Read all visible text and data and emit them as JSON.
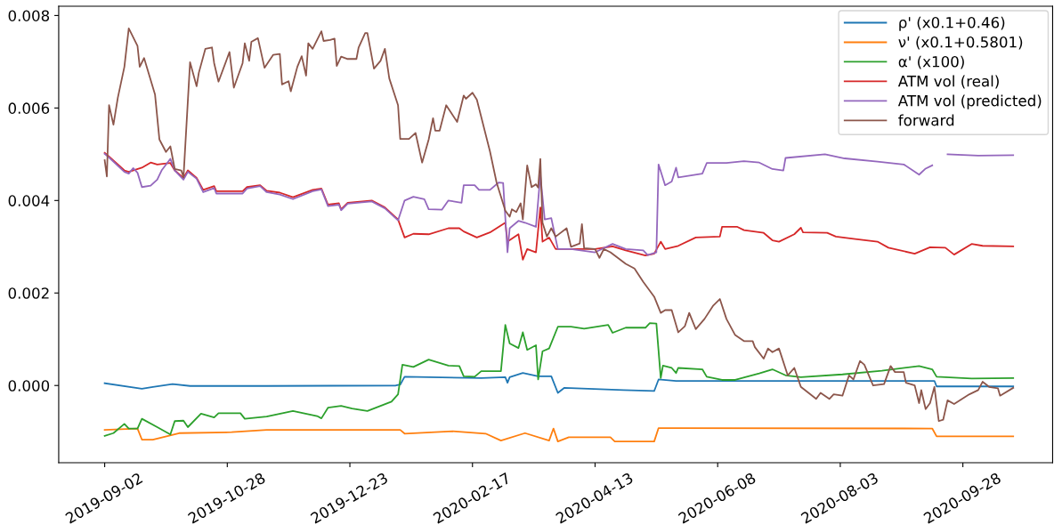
{
  "chart_data": {
    "type": "line",
    "xlim": [
      "2019-08-12",
      "2020-11-08"
    ],
    "ylim": [
      -0.00167,
      0.0082
    ],
    "xticks": [
      "2019-09-02",
      "2019-10-28",
      "2019-12-23",
      "2020-02-17",
      "2020-04-13",
      "2020-06-08",
      "2020-08-03",
      "2020-09-28"
    ],
    "yticks": [
      {
        "value": 0,
        "label": "0.000"
      },
      {
        "value": 0.002,
        "label": "0.002"
      },
      {
        "value": 0.004,
        "label": "0.004"
      },
      {
        "value": 0.006,
        "label": "0.006"
      },
      {
        "value": 0.008,
        "label": "0.008"
      }
    ],
    "grid": false,
    "legend": "top right",
    "series": [
      {
        "name": "ρ' (x0.1+0.46)",
        "color": "#1f77b4",
        "x": [
          "2019-09-02",
          "2019-09-19",
          "2019-09-24",
          "2019-10-03",
          "2019-10-11",
          "2019-11-15",
          "2020-01-13",
          "2020-01-15",
          "2020-01-17",
          "2020-02-21",
          "2020-03-03",
          "2020-03-04",
          "2020-03-05",
          "2020-03-11",
          "2020-03-18",
          "2020-03-24",
          "2020-03-27",
          "2020-03-30",
          "2020-04-26",
          "2020-05-10",
          "2020-05-12",
          "2020-05-20",
          "2020-07-16",
          "2020-09-15",
          "2020-09-16",
          "2020-10-21"
        ],
        "values": [
          5e-05,
          -7e-05,
          -3e-05,
          3e-05,
          -1e-05,
          -1e-05,
          0.0,
          2e-05,
          0.00019,
          0.00016,
          0.00018,
          6e-05,
          0.00018,
          0.00027,
          0.0002,
          0.0002,
          -0.00016,
          -5e-05,
          -0.0001,
          -0.00012,
          0.00013,
          0.0001,
          0.0001,
          0.0001,
          -2e-05,
          -2e-05
        ]
      },
      {
        "name": "ν' (x0.1+0.5801)",
        "color": "#ff7f0e",
        "x": [
          "2019-09-02",
          "2019-09-17",
          "2019-09-19",
          "2019-09-24",
          "2019-10-06",
          "2019-10-30",
          "2019-11-15",
          "2020-01-15",
          "2020-01-17",
          "2020-02-08",
          "2020-02-23",
          "2020-03-01",
          "2020-03-12",
          "2020-03-23",
          "2020-03-25",
          "2020-03-27",
          "2020-04-01",
          "2020-04-20",
          "2020-04-22",
          "2020-05-10",
          "2020-05-12",
          "2020-09-14",
          "2020-09-16",
          "2020-10-21"
        ],
        "values": [
          -0.00096,
          -0.00093,
          -0.00117,
          -0.00117,
          -0.00103,
          -0.00101,
          -0.00096,
          -0.00096,
          -0.00104,
          -0.00099,
          -0.00104,
          -0.00119,
          -0.00103,
          -0.00119,
          -0.00093,
          -0.00121,
          -0.00112,
          -0.00112,
          -0.00121,
          -0.00121,
          -0.00092,
          -0.00093,
          -0.0011,
          -0.0011
        ]
      },
      {
        "name": "α' (x100)",
        "color": "#2ca02c",
        "x": [
          "2019-09-02",
          "2019-09-06",
          "2019-09-11",
          "2019-09-13",
          "2019-09-17",
          "2019-09-19",
          "2019-09-26",
          "2019-10-02",
          "2019-10-04",
          "2019-10-08",
          "2019-10-10",
          "2019-10-16",
          "2019-10-22",
          "2019-10-24",
          "2019-11-03",
          "2019-11-05",
          "2019-11-15",
          "2019-11-27",
          "2019-12-08",
          "2019-12-10",
          "2019-12-13",
          "2019-12-19",
          "2019-12-24",
          "2019-12-31",
          "2020-01-11",
          "2020-01-14",
          "2020-01-16",
          "2020-01-21",
          "2020-01-28",
          "2020-02-06",
          "2020-02-11",
          "2020-02-13",
          "2020-02-18",
          "2020-02-21",
          "2020-03-01",
          "2020-03-03",
          "2020-03-05",
          "2020-03-09",
          "2020-03-11",
          "2020-03-13",
          "2020-03-17",
          "2020-03-18",
          "2020-03-20",
          "2020-03-23",
          "2020-03-27",
          "2020-04-02",
          "2020-04-08",
          "2020-04-19",
          "2020-04-21",
          "2020-04-27",
          "2020-05-06",
          "2020-05-08",
          "2020-05-11",
          "2020-05-13",
          "2020-05-14",
          "2020-05-18",
          "2020-05-20",
          "2020-05-21",
          "2020-06-01",
          "2020-06-03",
          "2020-06-10",
          "2020-06-16",
          "2020-06-27",
          "2020-07-03",
          "2020-07-09",
          "2020-07-16",
          "2020-08-04",
          "2020-08-22",
          "2020-09-08",
          "2020-09-14",
          "2020-09-16",
          "2020-10-02",
          "2020-10-21"
        ],
        "values": [
          -0.00109,
          -0.00103,
          -0.00083,
          -0.00093,
          -0.00093,
          -0.00072,
          -0.0009,
          -0.00106,
          -0.00077,
          -0.00076,
          -0.0009,
          -0.00061,
          -0.00069,
          -0.0006,
          -0.0006,
          -0.00072,
          -0.00067,
          -0.00055,
          -0.00066,
          -0.00071,
          -0.00048,
          -0.00044,
          -0.0005,
          -0.00055,
          -0.00035,
          -0.00019,
          0.00045,
          0.0004,
          0.00056,
          0.00043,
          0.00042,
          0.0002,
          0.00019,
          0.00031,
          0.00031,
          0.00131,
          0.00091,
          0.00081,
          0.00115,
          0.00077,
          0.00087,
          0.00013,
          0.00074,
          0.0008,
          0.00127,
          0.00127,
          0.00123,
          0.00131,
          0.00114,
          0.00125,
          0.00125,
          0.00135,
          0.00134,
          0.00016,
          0.00043,
          0.00038,
          0.00027,
          0.00038,
          0.00035,
          0.00019,
          0.00012,
          0.00012,
          0.00026,
          0.00035,
          0.00022,
          0.00018,
          0.00024,
          0.00032,
          0.00042,
          0.00035,
          0.00019,
          0.00015,
          0.00016
        ]
      },
      {
        "name": "ATM vol (real)",
        "color": "#d62728",
        "x": [
          "2019-09-02",
          "2019-09-04",
          "2019-09-11",
          "2019-09-13",
          "2019-09-19",
          "2019-09-23",
          "2019-09-26",
          "2019-10-02",
          "2019-10-04",
          "2019-10-08",
          "2019-10-10",
          "2019-10-14",
          "2019-10-17",
          "2019-10-22",
          "2019-10-23",
          "2019-11-04",
          "2019-11-06",
          "2019-11-12",
          "2019-11-15",
          "2019-11-21",
          "2019-11-27",
          "2019-12-06",
          "2019-12-10",
          "2019-12-13",
          "2019-12-18",
          "2019-12-19",
          "2019-12-22",
          "2020-01-02",
          "2020-01-08",
          "2020-01-14",
          "2020-01-17",
          "2020-01-21",
          "2020-01-28",
          "2020-02-06",
          "2020-02-11",
          "2020-02-13",
          "2020-02-19",
          "2020-02-25",
          "2020-03-03",
          "2020-03-04",
          "2020-03-09",
          "2020-03-11",
          "2020-03-13",
          "2020-03-17",
          "2020-03-19",
          "2020-03-20",
          "2020-03-23",
          "2020-03-26",
          "2020-04-13",
          "2020-04-21",
          "2020-04-27",
          "2020-05-06",
          "2020-05-10",
          "2020-05-13",
          "2020-05-15",
          "2020-05-21",
          "2020-05-29",
          "2020-06-09",
          "2020-06-10",
          "2020-06-17",
          "2020-06-20",
          "2020-06-29",
          "2020-07-03",
          "2020-07-06",
          "2020-07-13",
          "2020-07-16",
          "2020-07-17",
          "2020-07-28",
          "2020-08-01",
          "2020-08-09",
          "2020-08-20",
          "2020-08-25",
          "2020-09-06",
          "2020-09-13",
          "2020-09-20",
          "2020-09-24",
          "2020-10-02",
          "2020-10-07",
          "2020-10-21"
        ],
        "values": [
          0.00503,
          0.00495,
          0.00465,
          0.00462,
          0.00471,
          0.00482,
          0.00478,
          0.00481,
          0.00465,
          0.00449,
          0.00465,
          0.00449,
          0.00423,
          0.00431,
          0.0042,
          0.0042,
          0.00429,
          0.00433,
          0.00421,
          0.00417,
          0.00407,
          0.00423,
          0.00426,
          0.00391,
          0.00394,
          0.00381,
          0.00395,
          0.004,
          0.00385,
          0.00359,
          0.0032,
          0.00328,
          0.00327,
          0.0034,
          0.0034,
          0.00333,
          0.0032,
          0.00331,
          0.00352,
          0.00311,
          0.00327,
          0.00272,
          0.00295,
          0.00288,
          0.00385,
          0.00311,
          0.0032,
          0.00295,
          0.00295,
          0.00301,
          0.00292,
          0.00281,
          0.00285,
          0.00311,
          0.00295,
          0.00302,
          0.0032,
          0.00322,
          0.00343,
          0.00343,
          0.00336,
          0.0033,
          0.00314,
          0.00311,
          0.00327,
          0.00341,
          0.00331,
          0.0033,
          0.00322,
          0.00317,
          0.00311,
          0.00298,
          0.00285,
          0.00299,
          0.00298,
          0.00283,
          0.00306,
          0.00302,
          0.00301
        ]
      },
      {
        "name": "ATM vol (predicted)",
        "color": "#9467bd",
        "x": [
          "2019-09-02",
          "2019-09-04",
          "2019-09-11",
          "2019-09-13",
          "2019-09-15",
          "2019-09-17",
          "2019-09-19",
          "2019-09-23",
          "2019-09-26",
          "2019-09-28",
          "2019-10-02",
          "2019-10-04",
          "2019-10-08",
          "2019-10-10",
          "2019-10-14",
          "2019-10-17",
          "2019-10-22",
          "2019-10-23",
          "2019-11-04",
          "2019-11-06",
          "2019-11-12",
          "2019-11-15",
          "2019-11-21",
          "2019-11-27",
          "2019-12-06",
          "2019-12-10",
          "2019-12-13",
          "2019-12-18",
          "2019-12-19",
          "2019-12-22",
          "2020-01-02",
          "2020-01-08",
          "2020-01-14",
          "2020-01-17",
          "2020-01-21",
          "2020-01-26",
          "2020-01-28",
          "2020-02-03",
          "2020-02-06",
          "2020-02-12",
          "2020-02-13",
          "2020-02-18",
          "2020-02-20",
          "2020-02-25",
          "2020-02-29",
          "2020-03-02",
          "2020-03-04",
          "2020-03-05",
          "2020-03-09",
          "2020-03-12",
          "2020-03-17",
          "2020-03-19",
          "2020-03-21",
          "2020-03-24",
          "2020-03-27",
          "2020-04-02",
          "2020-04-13",
          "2020-04-21",
          "2020-04-27",
          "2020-05-05",
          "2020-05-07",
          "2020-05-11",
          "2020-05-12",
          "2020-05-15",
          "2020-05-18",
          "2020-05-20",
          "2020-05-21",
          "2020-06-01",
          "2020-06-03",
          "2020-06-12",
          "2020-06-20",
          "2020-06-27",
          "2020-07-03",
          "2020-07-08",
          "2020-07-09",
          "2020-07-27",
          "2020-08-05",
          "2020-08-20",
          "2020-09-01",
          "2020-09-08",
          "2020-09-11",
          "2020-09-14",
          "2020-09-18",
          "2020-09-21",
          "2020-10-05",
          "2020-10-21"
        ],
        "values": [
          0.00501,
          0.00493,
          0.00462,
          0.00458,
          0.0047,
          0.0046,
          0.00429,
          0.00432,
          0.00445,
          0.00465,
          0.0049,
          0.00465,
          0.00445,
          0.00462,
          0.00447,
          0.00418,
          0.00427,
          0.00415,
          0.00415,
          0.00426,
          0.00431,
          0.00418,
          0.00413,
          0.00403,
          0.0042,
          0.00424,
          0.00388,
          0.00391,
          0.00379,
          0.00393,
          0.00398,
          0.00383,
          0.00357,
          0.004,
          0.00408,
          0.00403,
          0.00381,
          0.0038,
          0.004,
          0.00395,
          0.00433,
          0.00433,
          0.00423,
          0.00423,
          0.00439,
          0.00438,
          0.00288,
          0.0034,
          0.00356,
          0.00352,
          0.00343,
          0.00455,
          0.00359,
          0.00362,
          0.00295,
          0.00295,
          0.00288,
          0.00306,
          0.00295,
          0.00292,
          0.00282,
          0.00288,
          0.00478,
          0.00433,
          0.00441,
          0.00471,
          0.0045,
          0.00458,
          0.00481,
          0.00481,
          0.00485,
          0.00482,
          0.00468,
          0.00465,
          0.00492,
          0.005,
          0.00491,
          0.00484,
          0.00478,
          0.00456,
          0.00469,
          0.00476,
          null,
          0.005,
          0.00497,
          0.00498
        ]
      },
      {
        "name": "forward",
        "color": "#8c564b",
        "x": [
          "2019-09-02",
          "2019-09-03",
          "2019-09-04",
          "2019-09-06",
          "2019-09-08",
          "2019-09-11",
          "2019-09-13",
          "2019-09-17",
          "2019-09-18",
          "2019-09-20",
          "2019-09-25",
          "2019-09-27",
          "2019-09-30",
          "2019-10-02",
          "2019-10-04",
          "2019-10-07",
          "2019-10-08",
          "2019-10-11",
          "2019-10-14",
          "2019-10-15",
          "2019-10-18",
          "2019-10-21",
          "2019-10-22",
          "2019-10-24",
          "2019-10-29",
          "2019-10-31",
          "2019-11-04",
          "2019-11-05",
          "2019-11-07",
          "2019-11-08",
          "2019-11-11",
          "2019-11-14",
          "2019-11-18",
          "2019-11-21",
          "2019-11-22",
          "2019-11-25",
          "2019-11-26",
          "2019-11-29",
          "2019-12-01",
          "2019-12-03",
          "2019-12-04",
          "2019-12-06",
          "2019-12-10",
          "2019-12-11",
          "2019-12-14",
          "2019-12-16",
          "2019-12-17",
          "2019-12-19",
          "2019-12-22",
          "2019-12-26",
          "2019-12-27",
          "2019-12-30",
          "2019-12-31",
          "2020-01-03",
          "2020-01-06",
          "2020-01-08",
          "2020-01-10",
          "2020-01-14",
          "2020-01-15",
          "2020-01-19",
          "2020-01-22",
          "2020-01-25",
          "2020-01-28",
          "2020-01-30",
          "2020-01-31",
          "2020-02-02",
          "2020-02-05",
          "2020-02-10",
          "2020-02-13",
          "2020-02-14",
          "2020-02-17",
          "2020-02-19",
          "2020-02-25",
          "2020-02-28",
          "2020-03-03",
          "2020-03-05",
          "2020-03-06",
          "2020-03-08",
          "2020-03-10",
          "2020-03-11",
          "2020-03-13",
          "2020-03-15",
          "2020-03-17",
          "2020-03-18",
          "2020-03-19",
          "2020-03-20",
          "2020-03-22",
          "2020-03-24",
          "2020-03-26",
          "2020-03-31",
          "2020-04-02",
          "2020-04-06",
          "2020-04-07",
          "2020-04-08",
          "2020-04-13",
          "2020-04-15",
          "2020-04-17",
          "2020-04-20",
          "2020-04-27",
          "2020-05-01",
          "2020-05-05",
          "2020-05-10",
          "2020-05-13",
          "2020-05-15",
          "2020-05-18",
          "2020-05-21",
          "2020-05-24",
          "2020-05-26",
          "2020-05-29",
          "2020-06-02",
          "2020-06-06",
          "2020-06-09",
          "2020-06-12",
          "2020-06-16",
          "2020-06-20",
          "2020-06-24",
          "2020-06-25",
          "2020-06-29",
          "2020-07-01",
          "2020-07-03",
          "2020-07-06",
          "2020-07-10",
          "2020-07-13",
          "2020-07-16",
          "2020-07-23",
          "2020-07-25",
          "2020-07-29",
          "2020-07-31",
          "2020-08-04",
          "2020-08-07",
          "2020-08-09",
          "2020-08-12",
          "2020-08-14",
          "2020-08-18",
          "2020-08-23",
          "2020-08-26",
          "2020-08-28",
          "2020-09-01",
          "2020-09-02",
          "2020-09-06",
          "2020-09-08",
          "2020-09-09",
          "2020-09-11",
          "2020-09-13",
          "2020-09-15",
          "2020-09-17",
          "2020-09-19",
          "2020-09-21",
          "2020-09-24",
          "2020-10-01",
          "2020-10-05",
          "2020-10-07",
          "2020-10-10",
          "2020-10-14",
          "2020-10-15",
          "2020-10-21"
        ],
        "values": [
          0.00487,
          0.00452,
          0.00606,
          0.00564,
          0.00622,
          0.00689,
          0.00772,
          0.00734,
          0.00689,
          0.00708,
          0.00629,
          0.00532,
          0.00505,
          0.00517,
          0.00468,
          0.00465,
          0.0045,
          0.00699,
          0.00647,
          0.00676,
          0.00728,
          0.00731,
          0.00697,
          0.00657,
          0.00721,
          0.00644,
          0.00697,
          0.0074,
          0.00702,
          0.00743,
          0.00751,
          0.00687,
          0.00715,
          0.00717,
          0.00651,
          0.00658,
          0.00636,
          0.00689,
          0.00712,
          0.0067,
          0.0074,
          0.00728,
          0.00766,
          0.00745,
          0.00747,
          0.0075,
          0.00691,
          0.00711,
          0.00706,
          0.00706,
          0.00731,
          0.00762,
          0.00762,
          0.00685,
          0.00702,
          0.00728,
          0.00664,
          0.00606,
          0.00533,
          0.00533,
          0.00546,
          0.00482,
          0.00532,
          0.00578,
          0.00551,
          0.00551,
          0.00606,
          0.0057,
          0.00627,
          0.0062,
          0.00633,
          0.00618,
          0.00506,
          0.00439,
          0.00378,
          0.00365,
          0.00381,
          0.00375,
          0.00394,
          0.00359,
          0.00476,
          0.00429,
          0.00435,
          0.00428,
          0.0049,
          0.00352,
          0.00322,
          0.0034,
          0.00322,
          0.0034,
          0.003,
          0.00307,
          0.00349,
          0.00297,
          0.00295,
          0.00276,
          0.00295,
          0.00288,
          0.00263,
          0.00253,
          0.00224,
          0.00192,
          0.00157,
          0.00163,
          0.00163,
          0.00115,
          0.00128,
          0.00157,
          0.00122,
          0.00144,
          0.00173,
          0.00187,
          0.00144,
          0.00109,
          0.00096,
          0.00096,
          0.00083,
          0.00058,
          0.0008,
          0.00072,
          0.0008,
          0.00022,
          0.00038,
          -3e-05,
          -0.00029,
          -0.00016,
          -0.00029,
          -0.00019,
          -0.00022,
          0.00022,
          0.00013,
          0.00053,
          0.00045,
          0.0,
          3e-05,
          0.00042,
          0.00029,
          0.00029,
          6e-05,
          0.0,
          -0.00038,
          -0.0001,
          -0.00051,
          -0.00038,
          -3e-05,
          -0.00077,
          -0.00074,
          -0.00032,
          -0.0004,
          -0.00019,
          -0.0001,
          8e-05,
          -3e-05,
          -6e-05,
          -0.00022,
          -5e-05
        ]
      }
    ]
  }
}
